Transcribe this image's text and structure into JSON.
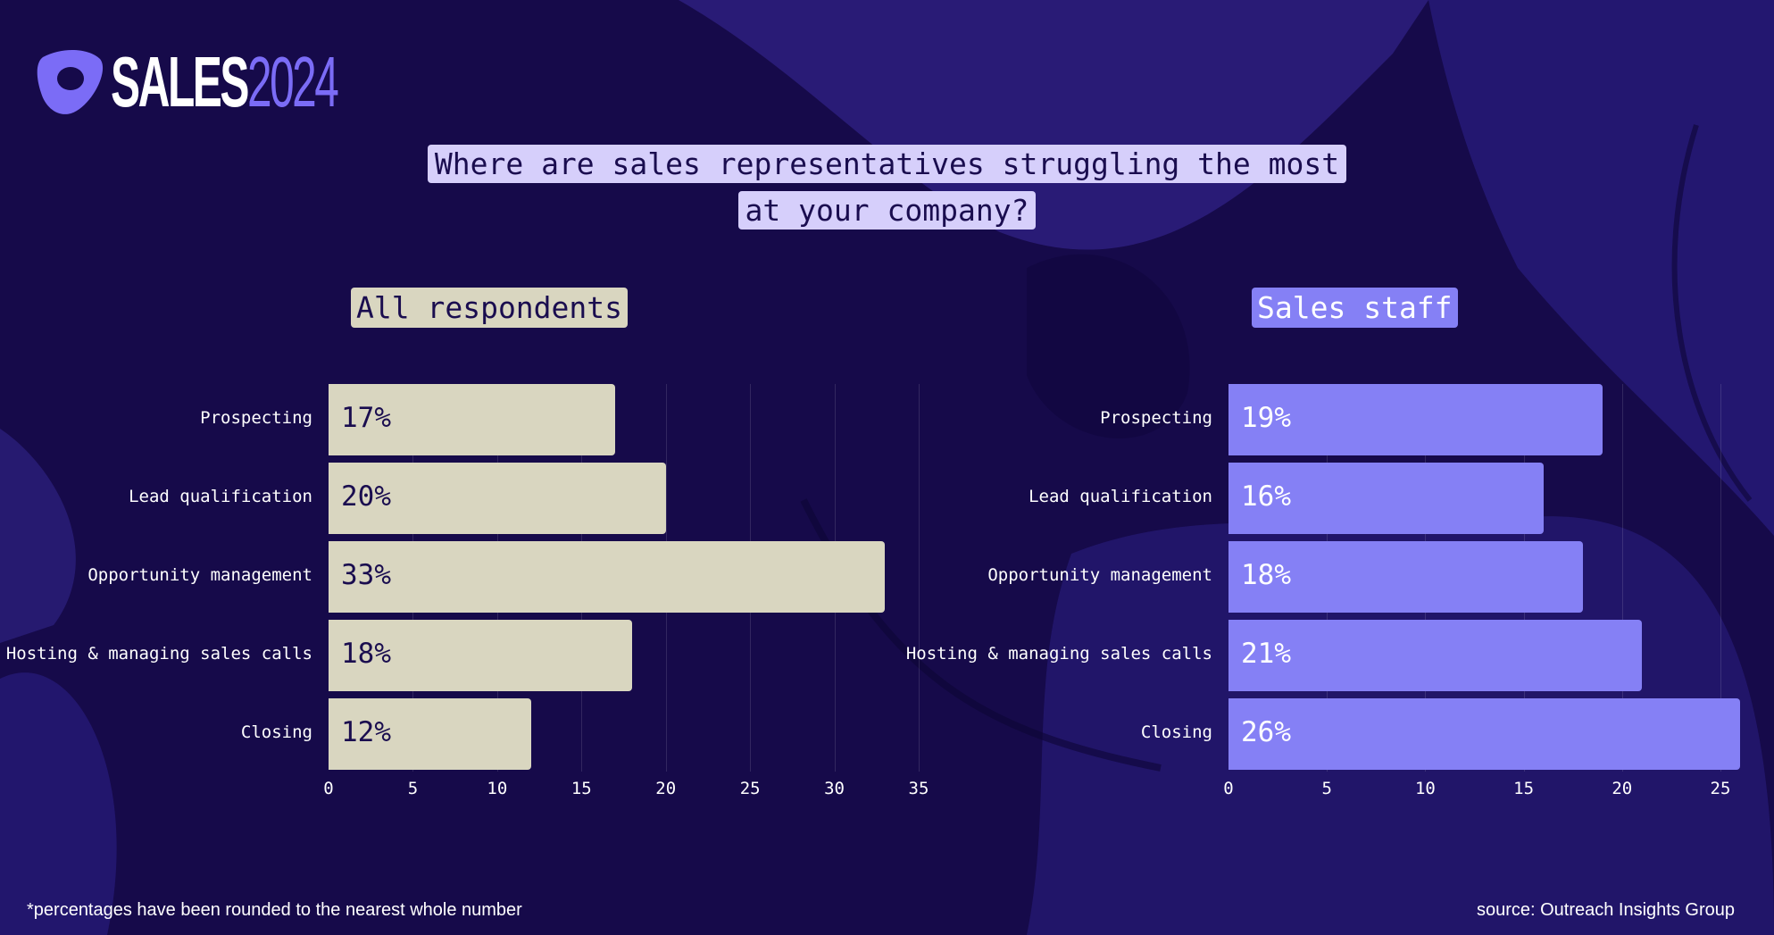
{
  "logo": {
    "word": "SALES",
    "year": "2024",
    "mark_color": "#7b6cf6"
  },
  "question": {
    "line1": "Where are sales representatives struggling the most",
    "line2": "at your company?"
  },
  "chart_data": [
    {
      "type": "bar",
      "orientation": "horizontal",
      "title": "All respondents",
      "categories": [
        "Prospecting",
        "Lead qualification",
        "Opportunity management",
        "Hosting & managing sales calls",
        "Closing"
      ],
      "values": [
        17,
        20,
        33,
        18,
        12
      ],
      "data_labels": [
        "17%",
        "20%",
        "33%",
        "18%",
        "12%"
      ],
      "xlim": [
        0,
        35
      ],
      "xticks": [
        "0",
        "5",
        "10",
        "15",
        "20",
        "25",
        "30",
        "35"
      ],
      "grid": true,
      "bar_color": "#d9d6c0",
      "title_bg": "#d9d6c0",
      "label_color": "#1a0d4f"
    },
    {
      "type": "bar",
      "orientation": "horizontal",
      "title": "Sales staff",
      "categories": [
        "Prospecting",
        "Lead qualification",
        "Opportunity management",
        "Hosting & managing sales calls",
        "Closing"
      ],
      "values": [
        19,
        16,
        18,
        21,
        26
      ],
      "data_labels": [
        "19%",
        "16%",
        "18%",
        "21%",
        "26%"
      ],
      "xlim": [
        0,
        25
      ],
      "xticks": [
        "0",
        "5",
        "10",
        "15",
        "20",
        "25"
      ],
      "grid": true,
      "bar_color": "#8580f5",
      "title_bg": "#8580f5",
      "label_color": "#ffffff"
    }
  ],
  "footer": {
    "note": "*percentages have been rounded to the nearest whole number",
    "source": "source: Outreach Insights Group"
  }
}
